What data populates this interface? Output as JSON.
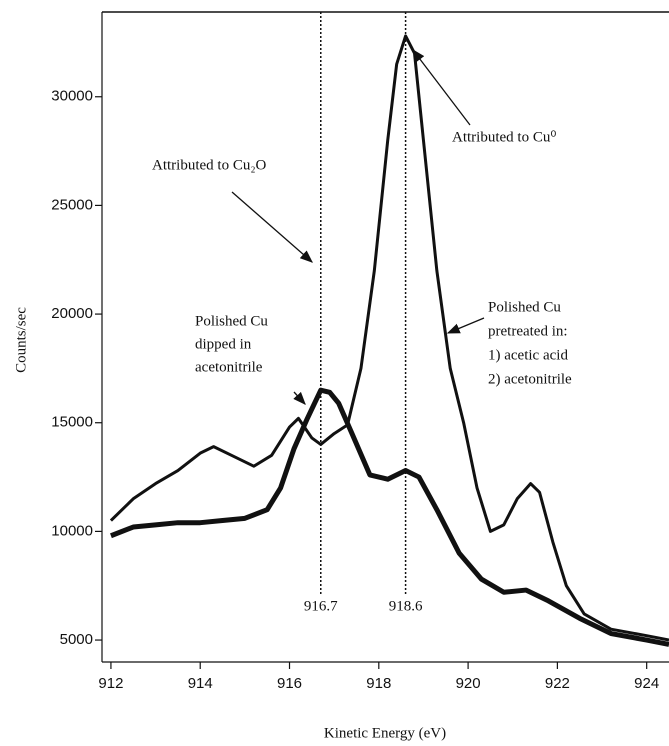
{
  "chart_data": {
    "type": "line",
    "xlabel": "Kinetic Energy (eV)",
    "ylabel": "Counts/sec",
    "xlim": [
      911.8,
      924.5
    ],
    "ylim": [
      3990,
      33900
    ],
    "xticks": [
      912,
      914,
      916,
      918,
      920,
      922,
      924
    ],
    "yticks": [
      5000,
      10000,
      15000,
      20000,
      25000,
      30000
    ],
    "reference_lines": [
      916.7,
      918.6
    ],
    "series": [
      {
        "color": "#111111",
        "x": [
          912,
          912.5,
          913,
          913.5,
          914,
          914.5,
          915,
          915.5,
          915.8,
          916.1,
          916.4,
          916.7,
          916.9,
          917.1,
          917.4,
          917.8,
          918.2,
          918.6,
          918.9,
          919.3,
          919.8,
          920.3,
          920.8,
          921.3,
          921.8,
          922.5,
          923.2,
          924,
          924.5
        ],
        "values": [
          9800,
          10200,
          10300,
          10400,
          10400,
          10500,
          10600,
          11000,
          12000,
          13800,
          15200,
          16500,
          16400,
          15900,
          14500,
          12600,
          12400,
          12800,
          12500,
          11000,
          9000,
          7800,
          7200,
          7300,
          6800,
          6000,
          5300,
          5000,
          4800
        ]
      },
      {
        "color": "#111111",
        "x": [
          912,
          912.5,
          913,
          913.5,
          914,
          914.3,
          914.7,
          915.2,
          915.6,
          916,
          916.2,
          916.5,
          916.7,
          917,
          917.3,
          917.6,
          917.9,
          918.2,
          918.4,
          918.6,
          918.8,
          919,
          919.3,
          919.6,
          919.9,
          920.2,
          920.5,
          920.8,
          921.1,
          921.4,
          921.6,
          921.9,
          922.2,
          922.6,
          923.2,
          924,
          924.5
        ],
        "values": [
          10500,
          11500,
          12200,
          12800,
          13600,
          13900,
          13500,
          13000,
          13500,
          14800,
          15200,
          14300,
          14000,
          14500,
          14900,
          17500,
          22000,
          28000,
          31500,
          32800,
          32000,
          28000,
          22000,
          17500,
          15000,
          12000,
          10000,
          10300,
          11500,
          12200,
          11800,
          9500,
          7500,
          6200,
          5500,
          5200,
          5000
        ]
      }
    ],
    "annotations": [
      {
        "lines": [
          "Attributed to Cu⁰"
        ]
      },
      {
        "lines": [
          "Attributed to Cu₂O"
        ]
      },
      {
        "lines": [
          "Polished Cu",
          "dipped in",
          "acetonitrile"
        ]
      },
      {
        "lines": [
          "Polished Cu",
          "pretreated in:",
          "1) acetic acid",
          "2) acetonitrile"
        ]
      }
    ]
  }
}
